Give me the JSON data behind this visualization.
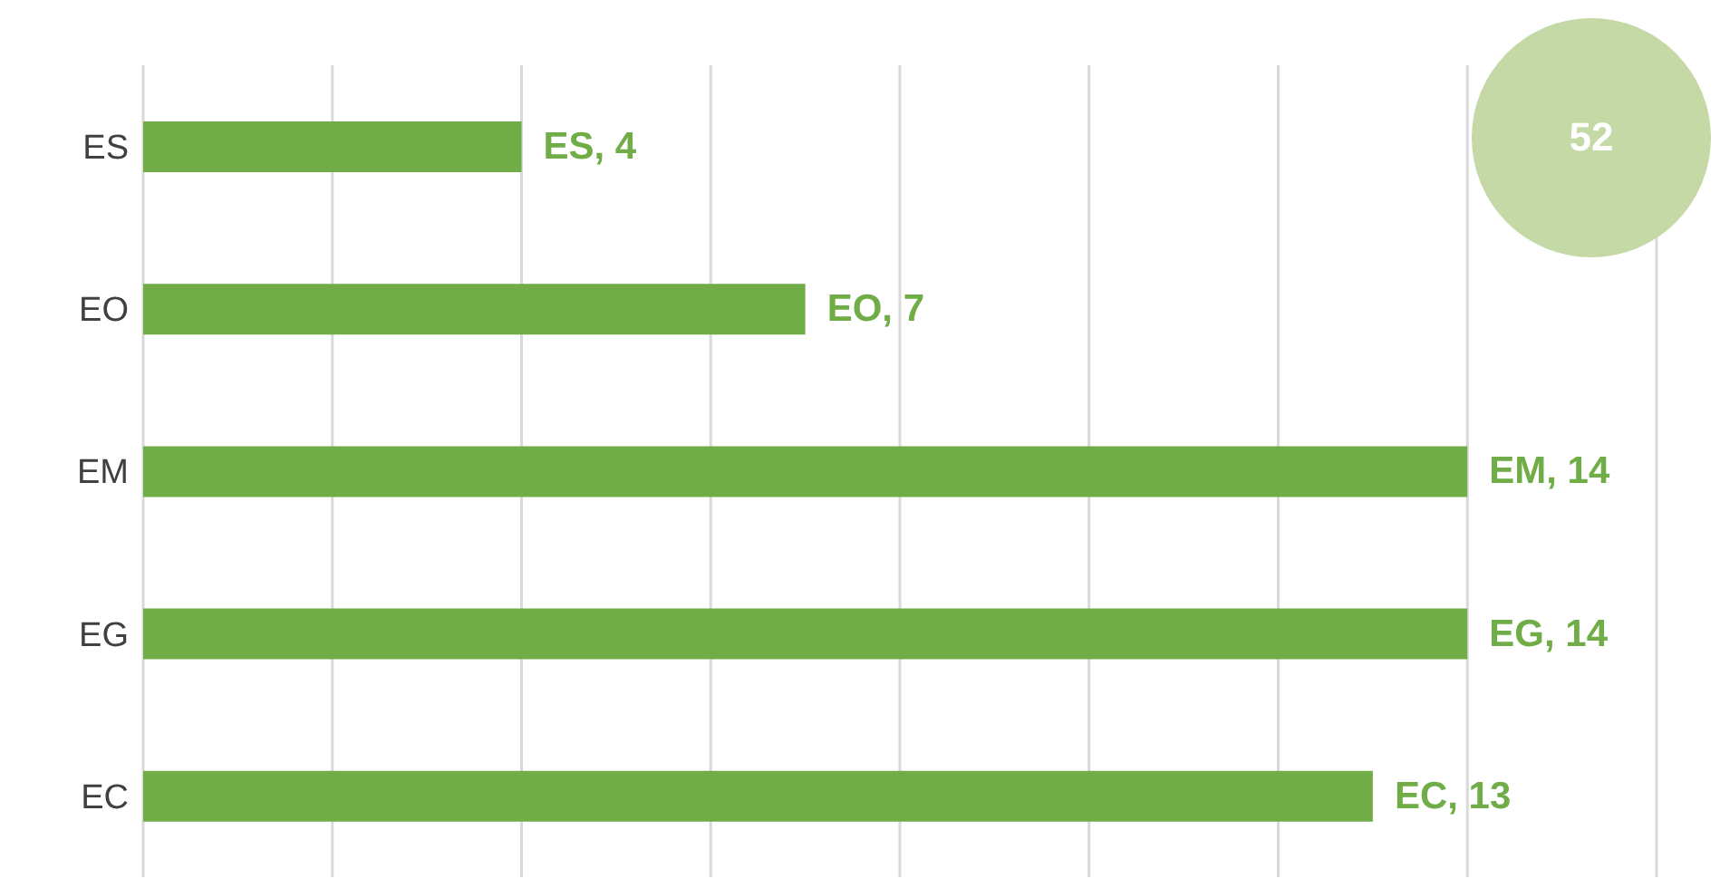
{
  "chart_data": {
    "type": "bar",
    "orientation": "horizontal",
    "categories": [
      "ES",
      "EO",
      "EM",
      "EG",
      "EC"
    ],
    "values": [
      4,
      7,
      14,
      14,
      13
    ],
    "color": "#70ad47",
    "value_labels": [
      "ES, 4",
      "EO, 7",
      "EM, 14",
      "EG, 14",
      "EC, 13"
    ],
    "xlim": [
      0,
      16
    ],
    "xticks": [
      {
        "value": 0,
        "label": null
      },
      {
        "value": 2,
        "label": null
      },
      {
        "value": 4,
        "label": null
      },
      {
        "value": 6,
        "label": null
      },
      {
        "value": 8,
        "label": null
      },
      {
        "value": 10,
        "label": null
      },
      {
        "value": 12,
        "label": null
      },
      {
        "value": 14,
        "label": null
      },
      {
        "value": 16,
        "label": null
      }
    ],
    "grid": "x",
    "tick_labels": "y",
    "legend": false,
    "annotations": [
      "52"
    ]
  }
}
